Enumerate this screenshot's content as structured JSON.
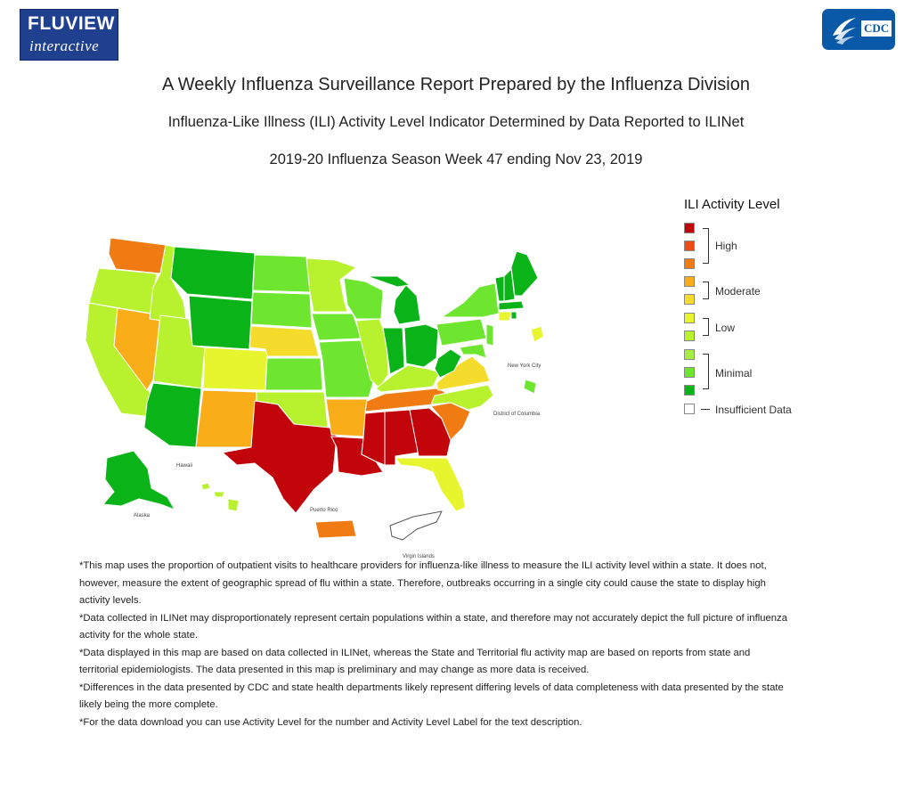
{
  "header": {
    "fluview_logo": {
      "line1": "FLUVIEW",
      "line2": "interactive"
    },
    "cdc_logo": {
      "text": "CDC",
      "icon": "hhs-eagle-icon"
    }
  },
  "titles": {
    "title": "A Weekly Influenza Surveillance Report Prepared by the Influenza Division",
    "subtitle": "Influenza-Like Illness (ILI) Activity Level Indicator Determined by Data Reported to ILINet",
    "season": "2019-20 Influenza Season Week 47 ending Nov 23, 2019"
  },
  "map": {
    "insets": {
      "new_york_city": "New York City",
      "district_of_columbia": "District of Columbia",
      "hawaii": "Hawaii",
      "alaska": "Alaska",
      "puerto_rico": "Puerto Rico",
      "virgin_islands": "Virgin Islands"
    },
    "level_colors": {
      "high": "#c1050a",
      "high_orange": "#f07b12",
      "moderate": "#f9bf2a",
      "moderate_light": "#f5dc2c",
      "low": "#e7f52f",
      "low_green": "#b8f22f",
      "minimal_light": "#6ee630",
      "minimal": "#0ab418",
      "insufficient": "#ffffff"
    }
  },
  "legend": {
    "title": "ILI Activity Level",
    "swatches": [
      "#c1050a",
      "#ee4b16",
      "#f07b12",
      "#f9ad19",
      "#f5dc2c",
      "#e7f52f",
      "#b8f22f",
      "#a6ee46",
      "#6ee630",
      "#0ab418"
    ],
    "groups": {
      "high": "High",
      "moderate": "Moderate",
      "low": "Low",
      "minimal": "Minimal"
    },
    "insufficient": "Insufficient Data"
  },
  "notes": [
    "*This map uses the proportion of outpatient visits to healthcare providers for influenza-like illness to measure the ILI activity level within a state. It does not, however, measure the extent of geographic spread of flu within a state. Therefore, outbreaks occurring in a single city could cause the state to display high activity levels.",
    "*Data collected in ILINet may disproportionately represent certain populations within a state, and therefore may not accurately depict the full picture of influenza activity for the whole state.",
    "*Data displayed in this map are based on data collected in ILINet, whereas the State and Territorial flu activity map are based on reports from state and territorial epidemiologists. The data presented in this map is preliminary and may change as more data is received.",
    "*Differences in the data presented by CDC and state health departments likely represent differing levels of data completeness with data presented by the state likely being the more complete.",
    "*For the data download you can use Activity Level for the number and Activity Level Label for the text description."
  ]
}
